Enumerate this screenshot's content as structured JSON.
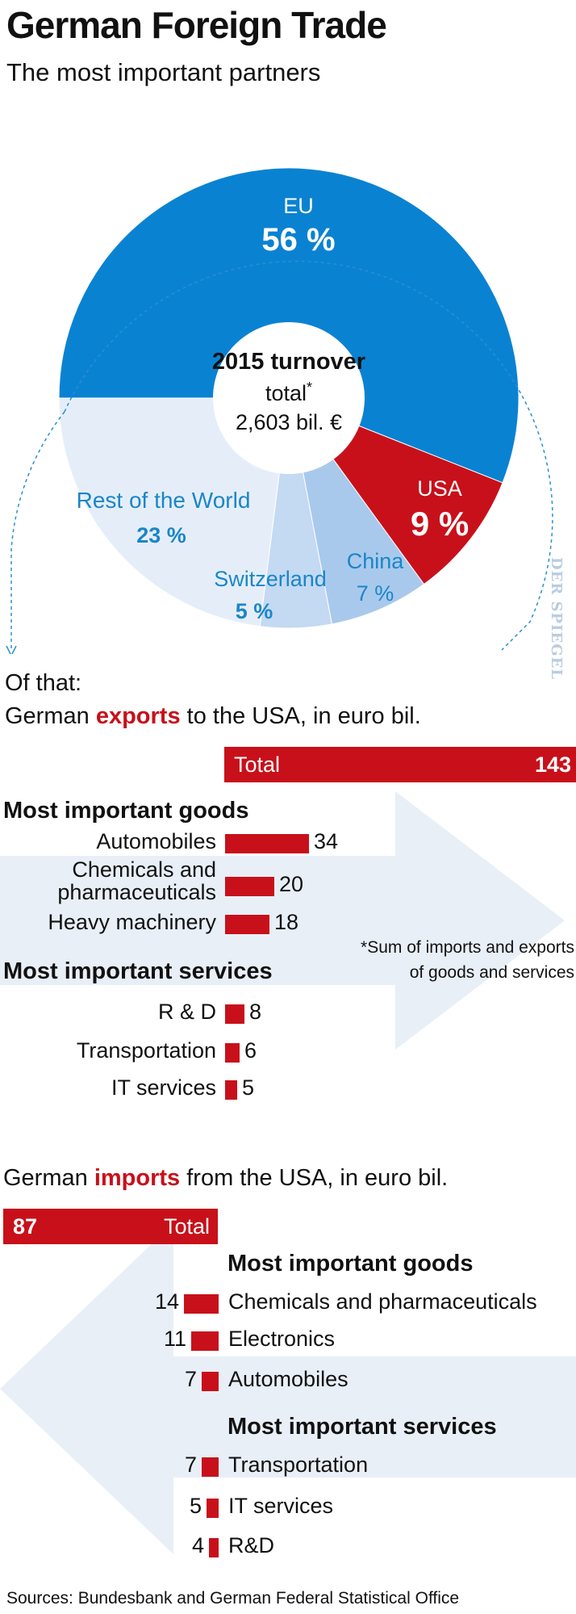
{
  "title": "German Foreign Trade",
  "subtitle": "The most important partners",
  "chart_data": [
    {
      "type": "pie",
      "center_label": {
        "line1": "2015 turnover",
        "line2": "total",
        "line2_mark": "*",
        "line3": "2,603 bil. €"
      },
      "slices": [
        {
          "name": "EU",
          "value": 56,
          "value_label": "56 %",
          "color": "#0a82d2"
        },
        {
          "name": "USA",
          "value": 9,
          "value_label": "9 %",
          "color": "#c8101a"
        },
        {
          "name": "China",
          "value": 7,
          "value_label": "7 %",
          "color": "#a9c9ec"
        },
        {
          "name": "Switzerland",
          "value": 5,
          "value_label": "5 %",
          "color": "#c4d9f2"
        },
        {
          "name": "Rest of the World",
          "value": 23,
          "value_label": "23 %",
          "color": "#e5eef8"
        }
      ]
    },
    {
      "type": "bar",
      "title_prefix": "German",
      "title_highlight": "exports",
      "title_suffix": "to the USA, in euro bil.",
      "total_label": "Total",
      "total_value": 143,
      "goods_heading": "Most important goods",
      "services_heading": "Most important services",
      "goods": [
        {
          "name": "Automobiles",
          "value": 34
        },
        {
          "name": "Chemicals and pharmaceuticals",
          "value": 20
        },
        {
          "name": "Heavy machinery",
          "value": 18
        }
      ],
      "services": [
        {
          "name": "R & D",
          "value": 8
        },
        {
          "name": "Transportation",
          "value": 6
        },
        {
          "name": "IT services",
          "value": 5
        }
      ]
    },
    {
      "type": "bar",
      "title_prefix": "German",
      "title_highlight": "imports",
      "title_suffix": "from the USA, in euro bil.",
      "total_label": "Total",
      "total_value": 87,
      "goods_heading": "Most important goods",
      "services_heading": "Most important services",
      "goods": [
        {
          "name": "Chemicals and pharmaceuticals",
          "value": 14
        },
        {
          "name": "Electronics",
          "value": 11
        },
        {
          "name": "Automobiles",
          "value": 7
        }
      ],
      "services": [
        {
          "name": "Transportation",
          "value": 7
        },
        {
          "name": "IT services",
          "value": 5
        },
        {
          "name": "R&D",
          "value": 4
        }
      ]
    }
  ],
  "of_that": "Of that:",
  "footnote": {
    "line1": "*Sum of imports and exports",
    "line2": "of goods and services"
  },
  "source": "Sources: Bundesbank and German Federal Statistical Office",
  "watermark": "DER SPIEGEL",
  "colors": {
    "accent_red": "#c8101a",
    "arrow_bg": "#e8eff7",
    "eu_blue": "#0a82d2",
    "label_blue": "#1a86c8"
  }
}
